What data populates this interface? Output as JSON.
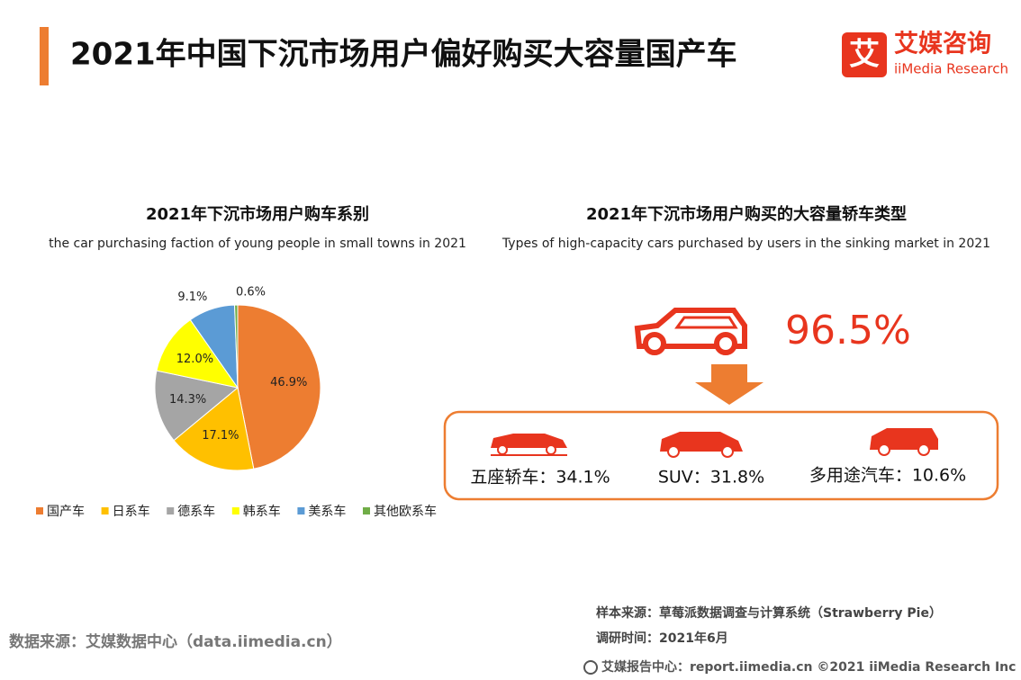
{
  "header": {
    "title": "2021年中国下沉市场用户偏好购买大容量国产车",
    "logo_mark": "艾",
    "logo_name": "艾媒咨询",
    "logo_en": "iiMedia Research"
  },
  "chart_data": {
    "type": "pie",
    "title": "2021年下沉市场用户购车系别",
    "subtitle": "the car purchasing faction of young people in small towns in 2021",
    "categories": [
      "国产车",
      "日系车",
      "德系车",
      "韩系车",
      "美系车",
      "其他欧系车"
    ],
    "values": [
      46.9,
      17.1,
      14.3,
      12.0,
      9.1,
      0.6
    ],
    "value_labels": [
      "46.9%",
      "17.1%",
      "14.3%",
      "12.0%",
      "9.1%",
      "0.6%"
    ],
    "colors": [
      "#ed7d31",
      "#ffc000",
      "#a5a5a5",
      "#ffff00",
      "#5b9bd5",
      "#70ad47"
    ],
    "legend": "bottom"
  },
  "panel": {
    "title": "2021年下沉市场用户购买的大容量轿车类型",
    "subtitle": "Types of high-capacity cars purchased by users in the sinking market in 2021",
    "highlight": "96.5%",
    "items": [
      "五座轿车：34.1%",
      "SUV：31.8%",
      "多用途汽车：10.6%"
    ]
  },
  "footer": {
    "source": "数据来源：艾媒数据中心（data.iimedia.cn）",
    "sample": "样本来源：草莓派数据调查与计算系统（Strawberry Pie）",
    "time": "调研时间：2021年6月",
    "center": "艾媒报告中心：report.iimedia.cn ©2021 iiMedia Research Inc"
  }
}
